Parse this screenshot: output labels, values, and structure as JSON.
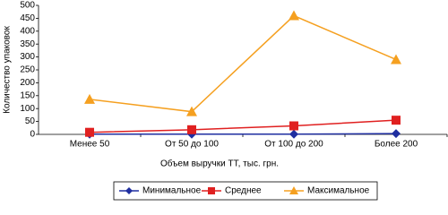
{
  "chart_data": {
    "type": "line",
    "categories": [
      "Менее 50",
      "От 50 до 100",
      "От 100 до 200",
      "Более 200"
    ],
    "x_label": "Объем выручки ТТ, тыс. грн.",
    "y_label": "Количество упаковок",
    "ylim": [
      0,
      500
    ],
    "yticks": [
      0,
      50,
      100,
      150,
      200,
      250,
      300,
      350,
      400,
      450,
      500
    ],
    "legend": "bottom",
    "series": [
      {
        "name": "Минимальное",
        "color": "#1f2ea0",
        "marker": "diamond",
        "values": [
          1,
          1,
          1,
          3
        ]
      },
      {
        "name": "Среднее",
        "color": "#e02020",
        "marker": "square",
        "values": [
          8,
          18,
          33,
          55
        ]
      },
      {
        "name": "Максимальное",
        "color": "#f5a020",
        "marker": "triangle",
        "values": [
          136,
          88,
          460,
          290
        ]
      }
    ]
  }
}
